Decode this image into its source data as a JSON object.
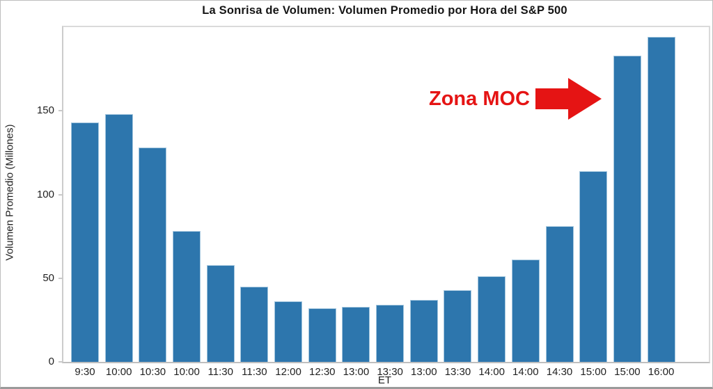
{
  "chart_data": {
    "type": "bar",
    "title": "La Sonrisa de Volumen: Volumen Promedio por Hora del S&P 500",
    "xlabel": "ET",
    "ylabel": "Volumen Promedio (Millones)",
    "categories": [
      "9:30",
      "10:00",
      "10:30",
      "10:00",
      "11:30",
      "11:30",
      "12:00",
      "12:30",
      "13:00",
      "13:30",
      "13:00",
      "13:30",
      "14:00",
      "14:00",
      "14:30",
      "15:00",
      "15:00",
      "16:00"
    ],
    "values": [
      143,
      148,
      128,
      78,
      58,
      45,
      36,
      32,
      33,
      34,
      37,
      43,
      51,
      61,
      81,
      114,
      183,
      194
    ],
    "ylim": [
      0,
      200
    ],
    "yticks": [
      0,
      50,
      100,
      150
    ],
    "grid": false,
    "legend": null,
    "bar_color": "#2d76ad",
    "bar_edge_color": "#a3c6de",
    "annotation": {
      "text": "Zona MOC",
      "color": "#e51414",
      "icon": "right-arrow"
    }
  }
}
